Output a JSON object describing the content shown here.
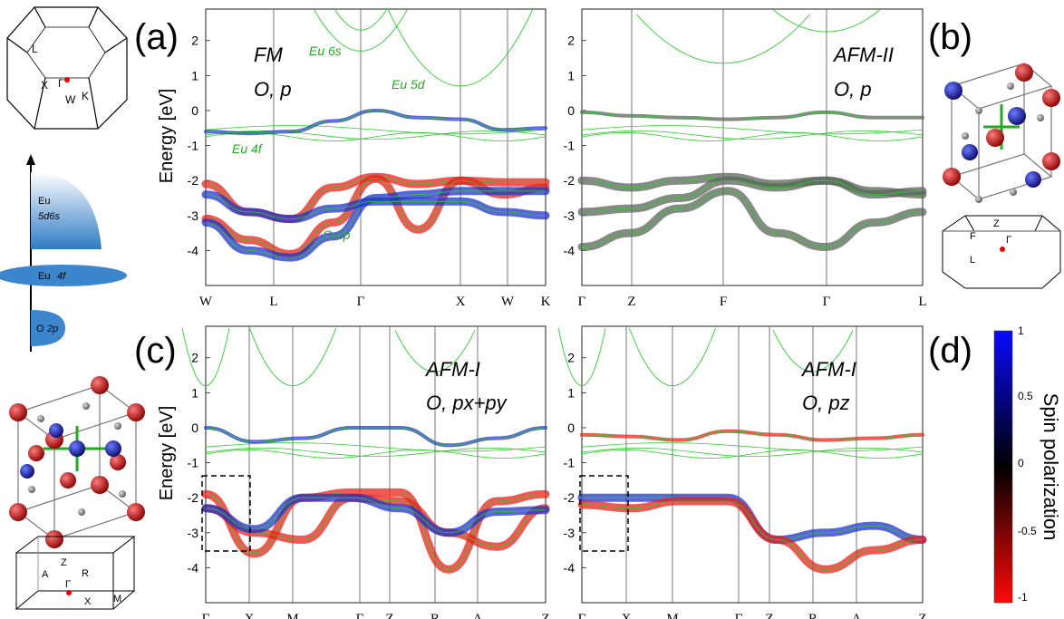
{
  "figure": {
    "panel_labels": {
      "a": "(a)",
      "b": "(b)",
      "c": "(c)",
      "d": "(d)"
    },
    "energy_axis_label": "Energy [eV]"
  },
  "dos_schematic": {
    "levels": [
      {
        "label": "Eu",
        "sublabel": "5d6s"
      },
      {
        "label": "Eu",
        "sublabel": "4f"
      },
      {
        "label": "O",
        "sublabel": "2p"
      }
    ]
  },
  "brillouin_zones": {
    "fcc": {
      "points": [
        "L",
        "X",
        "Γ",
        "W",
        "K"
      ]
    },
    "rhombohedral": {
      "points": [
        "Z",
        "F",
        "Γ",
        "L"
      ]
    },
    "tetragonal": {
      "points": [
        "Z",
        "A",
        "R",
        "Γ",
        "X",
        "M"
      ]
    }
  },
  "colorbar": {
    "title": "Spin polarization",
    "ticks": [
      "1",
      "0.5",
      "0",
      "-0.5",
      "-1"
    ],
    "colors": {
      "top": "#0a0aff",
      "mid": "#000000",
      "bottom": "#ff0a0a"
    }
  },
  "colors": {
    "blue_band": "#2233cc",
    "red_band": "#e8221a",
    "green_line": "#2ecc2e",
    "gray_band": "#606a60"
  },
  "chart_data": [
    {
      "id": "a",
      "type": "line",
      "title_lines": [
        "FM",
        "O, p"
      ],
      "ylabel": "Energy [eV]",
      "ylim": [
        -5,
        3
      ],
      "yticks": [
        "2",
        "1",
        "0",
        "-1",
        "-2",
        "-3",
        "-4"
      ],
      "xticks": [
        "W",
        "L",
        "Γ",
        "X",
        "W",
        "K"
      ],
      "annotations": [
        "Eu 6s",
        "Eu 5d",
        "Eu 4f",
        "O 2p"
      ],
      "bands": [
        {
          "color": "red",
          "values": [
            -2.1,
            -2.9,
            -3.1,
            -2.2,
            -1.9,
            -2.1,
            -2.0,
            -2.05,
            -2.05
          ]
        },
        {
          "color": "red",
          "values": [
            -3.1,
            -3.7,
            -4.1,
            -3.2,
            -1.95,
            -3.4,
            -2.0,
            -2.4,
            -2.2
          ]
        },
        {
          "color": "blue",
          "values": [
            -3.2,
            -4.0,
            -4.2,
            -3.6,
            -2.5,
            -2.4,
            -2.3,
            -2.3,
            -2.3
          ]
        },
        {
          "color": "blue",
          "values": [
            -2.4,
            -2.9,
            -3.1,
            -2.8,
            -2.6,
            -2.6,
            -2.6,
            -2.9,
            -3.0
          ]
        },
        {
          "color": "blue",
          "values": [
            -0.6,
            -0.65,
            -0.6,
            -0.3,
            0.0,
            -0.2,
            -0.25,
            -0.55,
            -0.5
          ]
        }
      ]
    },
    {
      "id": "b",
      "type": "line",
      "title_lines": [
        "AFM-II",
        "O, p"
      ],
      "ylim": [
        -5,
        3
      ],
      "yticks": [
        "2",
        "1",
        "0",
        "-1",
        "-2",
        "-3",
        "-4"
      ],
      "xticks": [
        "Γ",
        "Z",
        "F",
        "Γ",
        "L"
      ],
      "bands": [
        {
          "color": "gray",
          "values": [
            -2.0,
            -2.2,
            -2.0,
            -1.9,
            -2.1,
            -2.0,
            -2.3,
            -2.4
          ]
        },
        {
          "color": "gray",
          "values": [
            -2.9,
            -2.8,
            -2.5,
            -2.0,
            -2.2,
            -2.0,
            -2.4,
            -2.3
          ]
        },
        {
          "color": "gray",
          "values": [
            -3.9,
            -3.5,
            -2.8,
            -2.3,
            -3.5,
            -3.9,
            -3.2,
            -2.9
          ]
        },
        {
          "color": "gray",
          "values": [
            -0.05,
            -0.15,
            -0.2,
            -0.25,
            -0.2,
            -0.05,
            -0.2,
            -0.2
          ]
        }
      ]
    },
    {
      "id": "c",
      "type": "line",
      "title_lines": [
        "AFM-I",
        "O, px+py"
      ],
      "ylabel": "Energy [eV]",
      "ylim": [
        -5,
        3
      ],
      "yticks": [
        "2",
        "1",
        "0",
        "-1",
        "-2",
        "-3",
        "-4"
      ],
      "xticks": [
        "Γ",
        "X",
        "M",
        "Γ",
        "Z",
        "R",
        "A",
        "Z"
      ],
      "bands": [
        {
          "color": "red",
          "values": [
            -1.9,
            -3.6,
            -2.0,
            -1.85,
            -1.85,
            -4.05,
            -2.1,
            -1.9
          ]
        },
        {
          "color": "red",
          "values": [
            -2.3,
            -3.0,
            -3.2,
            -2.0,
            -2.1,
            -3.0,
            -3.4,
            -2.3
          ]
        },
        {
          "color": "blue",
          "values": [
            -2.3,
            -2.9,
            -2.0,
            -2.0,
            -2.3,
            -3.0,
            -2.4,
            -2.35
          ]
        },
        {
          "color": "blue",
          "values": [
            0.0,
            -0.4,
            -0.3,
            0.0,
            0.0,
            -0.5,
            -0.3,
            0.0
          ]
        }
      ]
    },
    {
      "id": "d",
      "type": "line",
      "title_lines": [
        "AFM-I",
        "O, pz"
      ],
      "ylim": [
        -5,
        3
      ],
      "yticks": [
        "2",
        "1",
        "0",
        "-1",
        "-2",
        "-3",
        "-4"
      ],
      "xticks": [
        "Γ",
        "X",
        "M",
        "Γ",
        "Z",
        "R",
        "A",
        "Z"
      ],
      "bands": [
        {
          "color": "blue",
          "values": [
            -2.0,
            -2.0,
            -2.0,
            -2.0,
            -3.2,
            -3.0,
            -2.8,
            -3.2
          ]
        },
        {
          "color": "red",
          "values": [
            -2.2,
            -2.3,
            -2.1,
            -2.1,
            -3.2,
            -4.05,
            -3.5,
            -3.2
          ]
        },
        {
          "color": "red",
          "values": [
            -0.2,
            -0.25,
            -0.35,
            -0.1,
            -0.2,
            -0.35,
            -0.3,
            -0.2
          ]
        }
      ]
    }
  ]
}
